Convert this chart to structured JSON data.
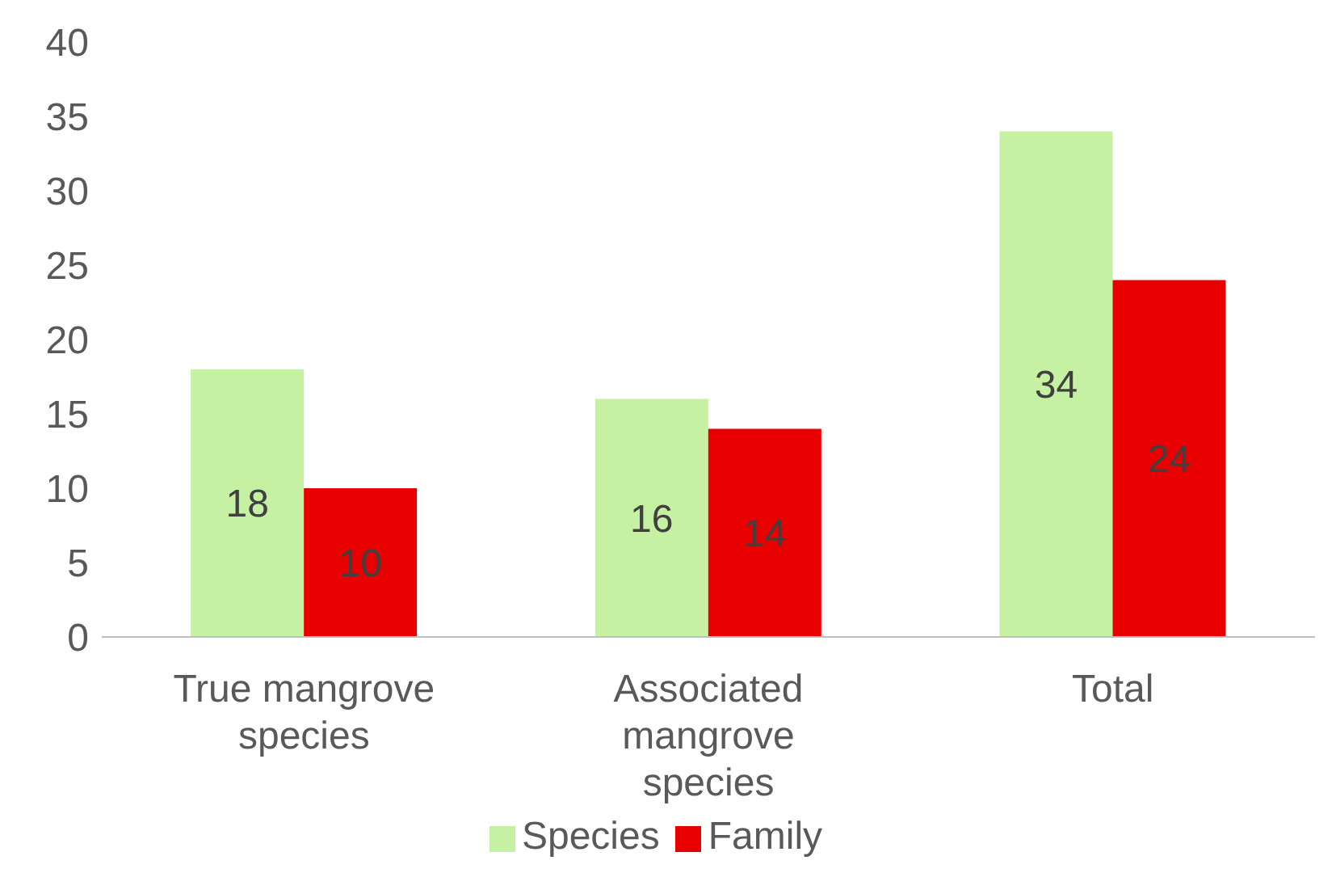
{
  "chart_data": {
    "type": "bar",
    "categories": [
      "True mangrove species",
      "Associated mangrove species",
      "Total"
    ],
    "series": [
      {
        "name": "Species",
        "color": "#c6f0a2",
        "values": [
          18,
          16,
          34
        ]
      },
      {
        "name": "Family",
        "color": "#e80000",
        "values": [
          10,
          14,
          24
        ]
      }
    ],
    "ylim": [
      0,
      40
    ],
    "yticks": [
      0,
      5,
      10,
      15,
      20,
      25,
      30,
      35,
      40
    ],
    "grid": false,
    "legend": "bottom",
    "data_labels": true
  }
}
